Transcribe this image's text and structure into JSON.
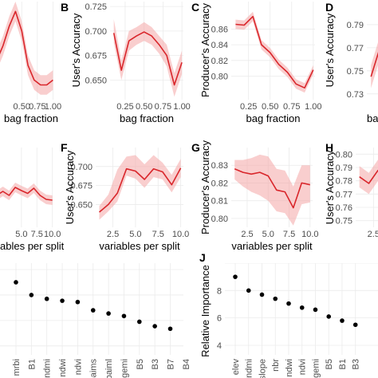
{
  "chart_data": [
    {
      "id": "A",
      "panel_label": "",
      "type": "line",
      "xlabel": "bag fraction",
      "ylabel": "",
      "xlim": [
        0.05,
        1.02
      ],
      "ylim": [
        0.7,
        0.9
      ],
      "xticks": [
        0.5,
        0.75,
        1.0
      ],
      "xtick_labels": [
        "0.50",
        "0.75",
        "1.00"
      ],
      "yticks": [],
      "ytick_labels": [],
      "x": [
        0.1,
        0.2,
        0.3,
        0.4,
        0.5,
        0.6,
        0.7,
        0.8,
        0.9,
        1.0
      ],
      "values": [
        0.78,
        0.81,
        0.85,
        0.88,
        0.84,
        0.77,
        0.74,
        0.73,
        0.73,
        0.74
      ],
      "lower": [
        0.76,
        0.79,
        0.83,
        0.86,
        0.82,
        0.75,
        0.72,
        0.71,
        0.71,
        0.72
      ],
      "upper": [
        0.8,
        0.83,
        0.87,
        0.9,
        0.86,
        0.79,
        0.76,
        0.75,
        0.75,
        0.76
      ]
    },
    {
      "id": "B",
      "panel_label": "B",
      "type": "line",
      "xlabel": "bag fraction",
      "ylabel": "User's Accuracy",
      "xlim": [
        0.05,
        1.02
      ],
      "ylim": [
        0.63,
        0.73
      ],
      "xticks": [
        0.25,
        0.5,
        0.75,
        1.0
      ],
      "xtick_labels": [
        "0.25",
        "0.50",
        "0.75",
        "1.00"
      ],
      "yticks": [
        0.65,
        0.675,
        0.7,
        0.725
      ],
      "ytick_labels": [
        "0.650",
        "0.675",
        "0.700",
        "0.725"
      ],
      "x": [
        0.1,
        0.2,
        0.3,
        0.4,
        0.5,
        0.6,
        0.7,
        0.8,
        0.9,
        1.0
      ],
      "values": [
        0.698,
        0.66,
        0.69,
        0.695,
        0.699,
        0.695,
        0.686,
        0.675,
        0.645,
        0.668
      ],
      "lower": [
        0.688,
        0.65,
        0.68,
        0.686,
        0.69,
        0.686,
        0.677,
        0.664,
        0.633,
        0.656
      ],
      "upper": [
        0.712,
        0.67,
        0.7,
        0.704,
        0.709,
        0.704,
        0.695,
        0.686,
        0.657,
        0.68
      ]
    },
    {
      "id": "C",
      "panel_label": "C",
      "type": "line",
      "xlabel": "bag fraction",
      "ylabel": "Producer's Accuracy",
      "xlim": [
        0.05,
        1.02
      ],
      "ylim": [
        0.77,
        0.895
      ],
      "xticks": [
        0.25,
        0.5,
        0.75,
        1.0
      ],
      "xtick_labels": [
        "0.25",
        "0.50",
        "0.75",
        "1.00"
      ],
      "yticks": [
        0.8,
        0.82,
        0.84,
        0.86
      ],
      "ytick_labels": [
        "0.80",
        "0.82",
        "0.84",
        "0.86"
      ],
      "x": [
        0.1,
        0.2,
        0.3,
        0.4,
        0.5,
        0.6,
        0.7,
        0.8,
        0.9,
        1.0
      ],
      "values": [
        0.866,
        0.865,
        0.876,
        0.84,
        0.83,
        0.815,
        0.805,
        0.79,
        0.785,
        0.808
      ],
      "lower": [
        0.86,
        0.859,
        0.87,
        0.834,
        0.824,
        0.809,
        0.799,
        0.784,
        0.779,
        0.802
      ],
      "upper": [
        0.872,
        0.871,
        0.882,
        0.846,
        0.836,
        0.821,
        0.811,
        0.796,
        0.791,
        0.814
      ]
    },
    {
      "id": "D",
      "panel_label": "D",
      "type": "line",
      "xlabel": "ba",
      "ylabel": "User's Accuracy",
      "xlim": [
        0.05,
        1.02
      ],
      "ylim": [
        0.725,
        0.81
      ],
      "xticks": [],
      "xtick_labels": [],
      "yticks": [
        0.73,
        0.75,
        0.77,
        0.79
      ],
      "ytick_labels": [
        "0.73",
        "0.75",
        "0.77",
        "0.79"
      ],
      "x": [
        0.1,
        0.2,
        0.3
      ],
      "values": [
        0.745,
        0.768,
        0.778
      ],
      "lower": [
        0.735,
        0.758,
        0.768
      ],
      "upper": [
        0.755,
        0.778,
        0.79
      ]
    },
    {
      "id": "E",
      "panel_label": "",
      "type": "line",
      "xlabel": "ables per split",
      "ylabel": "",
      "xlim": [
        0.5,
        10.3
      ],
      "ylim": [
        0.62,
        0.82
      ],
      "xticks": [
        5.0,
        7.5,
        10.0
      ],
      "xtick_labels": [
        "5.0",
        "7.5",
        "10.0"
      ],
      "yticks": [],
      "ytick_labels": [],
      "x": [
        1,
        2,
        3,
        4,
        5,
        6,
        7,
        8,
        9,
        10
      ],
      "values": [
        0.7,
        0.71,
        0.7,
        0.72,
        0.712,
        0.705,
        0.718,
        0.7,
        0.69,
        0.688
      ],
      "lower": [
        0.688,
        0.698,
        0.688,
        0.708,
        0.7,
        0.693,
        0.706,
        0.688,
        0.678,
        0.676
      ],
      "upper": [
        0.712,
        0.722,
        0.712,
        0.732,
        0.724,
        0.717,
        0.73,
        0.712,
        0.702,
        0.7
      ]
    },
    {
      "id": "F",
      "panel_label": "F",
      "type": "line",
      "xlabel": "variables per split",
      "ylabel": "User's Accuracy",
      "xlim": [
        0.6,
        10.3
      ],
      "ylim": [
        0.62,
        0.725
      ],
      "xticks": [
        2.5,
        5.0,
        7.5,
        10.0
      ],
      "xtick_labels": [
        "2.5",
        "5.0",
        "7.5",
        "10.0"
      ],
      "yticks": [
        0.65,
        0.675,
        0.7
      ],
      "ytick_labels": [
        "0.650",
        "0.675",
        "0.700"
      ],
      "x": [
        1,
        2,
        3,
        4,
        5,
        6,
        7,
        8,
        9,
        10
      ],
      "values": [
        0.64,
        0.65,
        0.665,
        0.697,
        0.694,
        0.683,
        0.697,
        0.693,
        0.676,
        0.698
      ],
      "lower": [
        0.63,
        0.641,
        0.654,
        0.688,
        0.684,
        0.672,
        0.686,
        0.683,
        0.666,
        0.686
      ],
      "upper": [
        0.648,
        0.663,
        0.696,
        0.713,
        0.715,
        0.703,
        0.715,
        0.705,
        0.689,
        0.71
      ]
    },
    {
      "id": "G",
      "panel_label": "G",
      "type": "line",
      "xlabel": "variables per split",
      "ylabel": "Producer's Accuracy",
      "xlim": [
        0.6,
        10.3
      ],
      "ylim": [
        0.795,
        0.84
      ],
      "xticks": [
        2.5,
        5.0,
        7.5,
        10.0
      ],
      "xtick_labels": [
        "2.5",
        "5.0",
        "7.5",
        "10.0"
      ],
      "yticks": [
        0.8,
        0.81,
        0.82,
        0.83
      ],
      "ytick_labels": [
        "0.80",
        "0.81",
        "0.82",
        "0.83"
      ],
      "x": [
        1,
        2,
        3,
        4,
        5,
        6,
        7,
        8,
        9,
        10
      ],
      "values": [
        0.828,
        0.826,
        0.825,
        0.826,
        0.824,
        0.816,
        0.815,
        0.806,
        0.82,
        0.819
      ],
      "lower": [
        0.822,
        0.818,
        0.815,
        0.813,
        0.81,
        0.804,
        0.803,
        0.796,
        0.808,
        0.809
      ],
      "upper": [
        0.833,
        0.833,
        0.834,
        0.836,
        0.835,
        0.828,
        0.827,
        0.818,
        0.83,
        0.83
      ]
    },
    {
      "id": "H",
      "panel_label": "H",
      "type": "line",
      "xlabel": "",
      "ylabel": "User's Accuracy",
      "xlim": [
        0.6,
        10.3
      ],
      "ylim": [
        0.745,
        0.805
      ],
      "xticks": [
        2.5
      ],
      "xtick_labels": [
        "2.5"
      ],
      "yticks": [
        0.75,
        0.76,
        0.77,
        0.78,
        0.79,
        0.8
      ],
      "ytick_labels": [
        "0.75",
        "0.76",
        "0.77",
        "0.78",
        "0.79",
        "0.80"
      ],
      "x": [
        1,
        2,
        3
      ],
      "values": [
        0.783,
        0.778,
        0.788
      ],
      "lower": [
        0.775,
        0.77,
        0.78
      ],
      "upper": [
        0.791,
        0.786,
        0.796
      ]
    },
    {
      "id": "I",
      "panel_label": "",
      "type": "scatter",
      "xlabel": "",
      "ylabel": "",
      "categories": [
        "mrbi",
        "B1",
        "ndmi",
        "ndwi",
        "ndvi",
        "baims",
        "baiml",
        "gemi",
        "B5",
        "B3",
        "B7",
        "B4"
      ],
      "values": [
        9.0,
        8.0,
        7.7,
        7.55,
        7.45,
        6.8,
        6.55,
        6.35,
        5.9,
        5.55,
        5.35,
        3.6
      ],
      "ylim": [
        3.3,
        10.5
      ]
    },
    {
      "id": "J",
      "panel_label": "J",
      "type": "scatter",
      "xlabel": "",
      "ylabel": "Relative Importance",
      "categories": [
        "elev",
        "ndmi",
        "slope",
        "nbr",
        "ndwi",
        "ndvi",
        "gemi",
        "B5",
        "B1",
        "B3"
      ],
      "values": [
        9.0,
        8.0,
        7.7,
        7.4,
        7.05,
        6.75,
        6.6,
        6.1,
        5.8,
        5.5
      ],
      "ylim": [
        3.3,
        10.0
      ],
      "yticks": [
        4,
        6,
        8
      ],
      "ytick_labels": [
        "4",
        "6",
        "8"
      ]
    }
  ]
}
